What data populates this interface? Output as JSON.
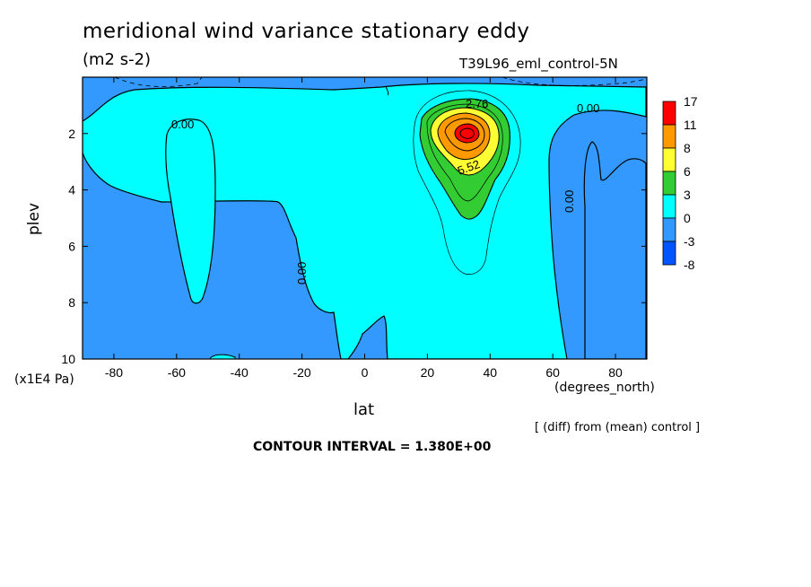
{
  "chart_data": {
    "type": "heatmap",
    "title": "meridional wind variance  stationary eddy",
    "units": "(m2 s-2)",
    "run_label": "T39L96_eml_control-5N",
    "xlabel": "lat",
    "x_unit": "(degrees_north)",
    "ylabel": "plev",
    "y_unit": "(x1E4 Pa)",
    "xlim": [
      -90,
      90
    ],
    "ylim": [
      10,
      0
    ],
    "x_ticks": [
      "-80",
      "-60",
      "-40",
      "-20",
      "0",
      "20",
      "40",
      "60",
      "80"
    ],
    "y_ticks": [
      "2",
      "4",
      "6",
      "8",
      "10"
    ],
    "colorbar": {
      "levels": [
        "17",
        "11",
        "8",
        "6",
        "3",
        "0",
        "-3",
        "-8"
      ],
      "colors": [
        "#ff0000",
        "#ff9900",
        "#ffff33",
        "#33cc33",
        "#00ffff",
        "#3399ff",
        "#0055ff"
      ]
    },
    "contour_labels": [
      "0.00",
      "0.00",
      "0.00",
      "0.00",
      "2.76",
      "5.52"
    ],
    "max_center": {
      "lat": 31,
      "plev": 2.0
    },
    "diff_note": "[ (diff) from (mean) control ]",
    "contour_interval": "CONTOUR INTERVAL = 1.380E+00"
  }
}
